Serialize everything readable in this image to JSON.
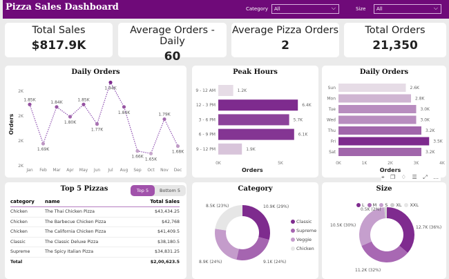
{
  "header": {
    "title": "Pizza Sales Dashboard",
    "filters": [
      {
        "label": "Category",
        "value": "All"
      },
      {
        "label": "Size",
        "value": "All"
      }
    ]
  },
  "kpis": [
    {
      "label": "Total Sales",
      "value": "$817.9K"
    },
    {
      "label": "Average Orders - Daily",
      "value": "60"
    },
    {
      "label": "Average Pizza Orders",
      "value": "2"
    },
    {
      "label": "Total Orders",
      "value": "21,350"
    }
  ],
  "colors": {
    "header": "#6f0a79",
    "dark": "#7e2b8e",
    "mid": "#a565b0",
    "light": "#c49ccb",
    "grey": "#e6e6e6"
  },
  "chart_data": [
    {
      "type": "line",
      "title": "Daily Orders",
      "ylabel": "Orders",
      "xlabel": "",
      "categories": [
        "Jan",
        "Feb",
        "Mar",
        "Apr",
        "May",
        "Jun",
        "Jul",
        "Aug",
        "Sep",
        "Oct",
        "Nov",
        "Dec"
      ],
      "values": [
        1.85,
        1.69,
        1.84,
        1.8,
        1.85,
        1.77,
        1.94,
        1.84,
        1.66,
        1.65,
        1.79,
        1.68
      ],
      "data_labels": [
        "1.85K",
        "1.69K",
        "1.84K",
        "1.80K",
        "1.85K",
        "1.77K",
        "1.94K",
        "1.84K",
        "1.66K",
        "1.65K",
        "1.79K",
        "1.68K"
      ],
      "y_ticks": [
        "2K",
        "2K",
        "2K",
        "2K"
      ],
      "ylim": [
        1.6,
        1.95
      ],
      "unit": "K"
    },
    {
      "type": "bar",
      "orientation": "horizontal",
      "title": "Peak Hours",
      "xlabel": "Orders",
      "categories": [
        "9 - 12 AM",
        "12 - 3 PM",
        "3 - 6 PM",
        "6 - 9 PM",
        "9 - 12 PM"
      ],
      "values": [
        1.2,
        6.4,
        5.7,
        6.1,
        1.9
      ],
      "data_labels": [
        "1.2K",
        "6.4K",
        "5.7K",
        "6.1K",
        "1.9K"
      ],
      "x_ticks": [
        "0K",
        "5K"
      ],
      "xlim": [
        0,
        7.5
      ]
    },
    {
      "type": "bar",
      "orientation": "horizontal",
      "title": "Daily Orders",
      "xlabel": "Orders",
      "categories": [
        "Sun",
        "Mon",
        "Tue",
        "Wed",
        "Thu",
        "Fri",
        "Sat"
      ],
      "values": [
        2.6,
        2.8,
        3.0,
        3.0,
        3.2,
        3.5,
        3.2
      ],
      "data_labels": [
        "2.6K",
        "2.8K",
        "3.0K",
        "3.0K",
        "3.2K",
        "3.5K",
        "3.2K"
      ],
      "x_ticks": [
        "0K",
        "1K",
        "2K",
        "3K",
        "4K"
      ],
      "xlim": [
        0,
        4
      ]
    },
    {
      "type": "pie",
      "donut": true,
      "title": "Category",
      "labels": [
        "Classic",
        "Supreme",
        "Veggie",
        "Chicken"
      ],
      "values": [
        10.9,
        9.1,
        8.9,
        8.5
      ],
      "data_labels": [
        "10.9K (29%)",
        "9.1K (24%)",
        "8.9K (24%)",
        "8.5K (23%)"
      ],
      "colors": [
        "#7e2b8e",
        "#a565b0",
        "#c49ccb",
        "#e6e6e6"
      ],
      "legend": "right"
    },
    {
      "type": "pie",
      "donut": true,
      "title": "Size",
      "labels": [
        "L",
        "M",
        "S",
        "XL",
        "XXL"
      ],
      "values": [
        12.7,
        11.2,
        10.5,
        0.5,
        0.03
      ],
      "data_labels": [
        "12.7K (36%)",
        "11.2K (32%)",
        "10.5K (30%)",
        "0.5K (2%)",
        ""
      ],
      "colors": [
        "#7f2b8f",
        "#a868b3",
        "#c59fcd",
        "#cfcfcf",
        "#e6e6e6"
      ],
      "legend": "top"
    },
    {
      "type": "table",
      "title": "Top 5 Pizzas",
      "toggle": [
        "Top 5",
        "Bottom 5"
      ],
      "columns": [
        "category",
        "name",
        "Total Sales"
      ],
      "rows": [
        [
          "Chicken",
          "The Thai Chicken Pizza",
          "$43,434.25"
        ],
        [
          "Chicken",
          "The Barbecue Chicken Pizza",
          "$42,768"
        ],
        [
          "Chicken",
          "The California Chicken Pizza",
          "$41,409.5"
        ],
        [
          "Classic",
          "The Classic Deluxe Pizza",
          "$38,180.5"
        ],
        [
          "Supreme",
          "The Spicy Italian Pizza",
          "$34,831.25"
        ]
      ],
      "total": [
        "Total",
        "$2,00,623.5"
      ]
    }
  ],
  "toolbar": {
    "icons": "⌖ ❐ ♢ ☰ ⤢ …"
  }
}
